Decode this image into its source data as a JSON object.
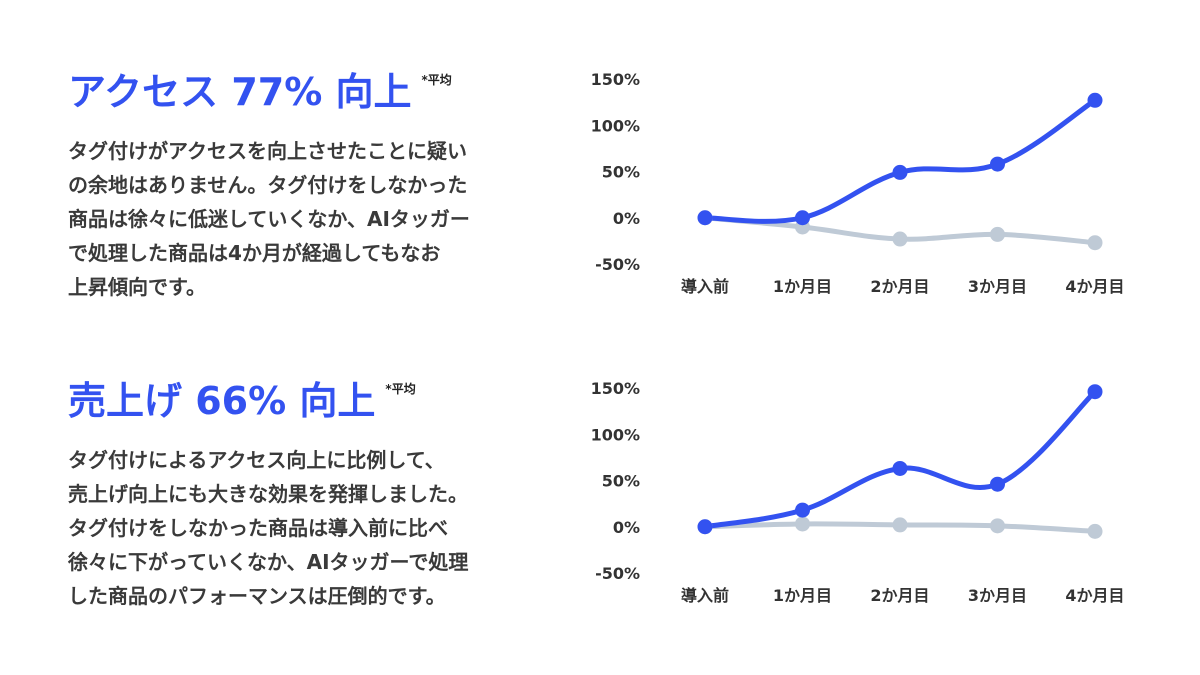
{
  "sections": [
    {
      "headline": "アクセス 77% 向上",
      "note": "*平均",
      "body_lines": [
        "タグ付けがアクセスを向上させたことに疑い",
        "の余地はありません。タグ付けをしなかった",
        "商品は徐々に低迷していくなか、AIタッガー",
        "で処理した商品は4か月が経過してもなお",
        "上昇傾向です。"
      ]
    },
    {
      "headline": "売上げ 66% 向上",
      "note": "*平均",
      "body_lines": [
        "タグ付けによるアクセス向上に比例して、",
        "売上げ向上にも大きな効果を発揮しました。",
        "タグ付けをしなかった商品は導入前に比べ",
        "徐々に下がっていくなか、AIタッガーで処理",
        "した商品のパフォーマンスは圧倒的です。"
      ]
    }
  ],
  "colors": {
    "accent": "#3352f0",
    "baseline": "#bfcad6"
  },
  "chart_data": [
    {
      "type": "line",
      "categories": [
        "導入前",
        "1か月目",
        "2か月目",
        "3か月目",
        "4か月目"
      ],
      "y_ticks": [
        "150%",
        "100%",
        "50%",
        "0%",
        "-50%"
      ],
      "ylim": [
        -50,
        150
      ],
      "grid": false,
      "series": [
        {
          "values": [
            0,
            0,
            49,
            58,
            127
          ],
          "color": "#3352f0"
        },
        {
          "values": [
            0,
            -10,
            -23,
            -18,
            -27
          ],
          "color": "#bfcad6"
        }
      ]
    },
    {
      "type": "line",
      "categories": [
        "導入前",
        "1か月目",
        "2か月目",
        "3か月目",
        "4か月目"
      ],
      "y_ticks": [
        "150%",
        "100%",
        "50%",
        "0%",
        "-50%"
      ],
      "ylim": [
        -50,
        150
      ],
      "grid": false,
      "series": [
        {
          "values": [
            0,
            18,
            63,
            46,
            146
          ],
          "color": "#3352f0"
        },
        {
          "values": [
            0,
            3,
            2,
            1,
            -5
          ],
          "color": "#bfcad6"
        }
      ]
    }
  ]
}
